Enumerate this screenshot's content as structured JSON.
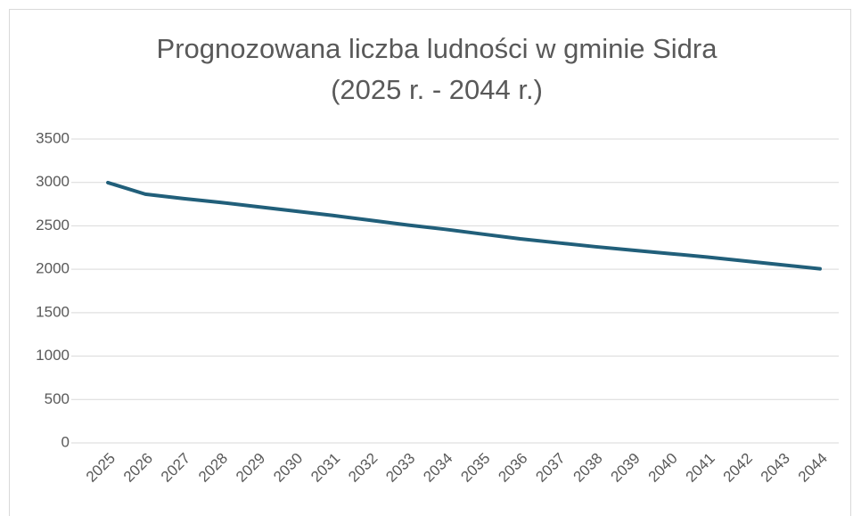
{
  "chart_data": {
    "type": "line",
    "title": [
      "Prognozowana liczba ludności w gminie Sidra",
      "(2025 r. - 2044 r.)"
    ],
    "categories": [
      "2025",
      "2026",
      "2027",
      "2028",
      "2029",
      "2030",
      "2031",
      "2032",
      "2033",
      "2034",
      "2035",
      "2036",
      "2037",
      "2038",
      "2039",
      "2040",
      "2041",
      "2042",
      "2043",
      "2044"
    ],
    "values": [
      2998,
      2865,
      2815,
      2770,
      2720,
      2670,
      2620,
      2565,
      2510,
      2460,
      2405,
      2350,
      2305,
      2260,
      2220,
      2180,
      2140,
      2095,
      2050,
      2005
    ],
    "color": "#215f7a",
    "ylim": [
      0,
      3500
    ],
    "yticks": [
      0,
      500,
      1000,
      1500,
      2000,
      2500,
      3000,
      3500
    ],
    "grid": true
  }
}
